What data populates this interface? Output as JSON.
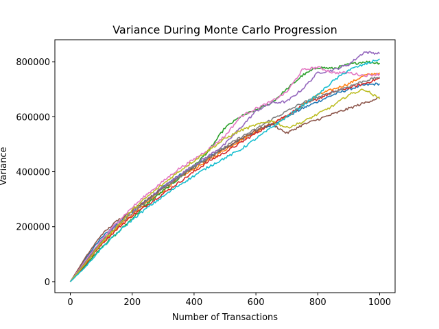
{
  "chart_data": {
    "type": "line",
    "title": "Variance During Monte Carlo Progression",
    "xlabel": "Number of Transactions",
    "ylabel": "Variance",
    "xlim": [
      -50,
      1050
    ],
    "ylim": [
      -40000,
      880000
    ],
    "x_ticks": [
      0,
      200,
      400,
      600,
      800,
      1000
    ],
    "x_tick_labels": [
      "0",
      "200",
      "400",
      "600",
      "800",
      "1000"
    ],
    "y_ticks": [
      0,
      200000,
      400000,
      600000,
      800000
    ],
    "y_tick_labels": [
      "0",
      "200000",
      "400000",
      "600000",
      "800000"
    ],
    "grid": false,
    "legend": "none",
    "x": [
      0,
      50,
      100,
      150,
      200,
      250,
      300,
      350,
      400,
      450,
      500,
      550,
      600,
      650,
      700,
      750,
      800,
      850,
      900,
      950,
      1000
    ],
    "series": [
      {
        "color": "#1f77b4",
        "values": [
          0,
          85000,
          160000,
          210000,
          255000,
          300000,
          345000,
          385000,
          420000,
          455000,
          485000,
          515000,
          545000,
          570000,
          600000,
          630000,
          655000,
          680000,
          700000,
          715000,
          720000
        ]
      },
      {
        "color": "#ff7f0e",
        "values": [
          0,
          70000,
          140000,
          195000,
          245000,
          290000,
          330000,
          375000,
          410000,
          445000,
          480000,
          515000,
          545000,
          575000,
          600000,
          640000,
          680000,
          700000,
          720000,
          750000,
          760000
        ]
      },
      {
        "color": "#2ca02c",
        "values": [
          0,
          60000,
          125000,
          175000,
          230000,
          285000,
          330000,
          375000,
          420000,
          480000,
          560000,
          600000,
          625000,
          650000,
          700000,
          750000,
          780000,
          775000,
          790000,
          800000,
          795000
        ]
      },
      {
        "color": "#d62728",
        "values": [
          0,
          65000,
          135000,
          190000,
          240000,
          280000,
          320000,
          360000,
          400000,
          440000,
          470000,
          505000,
          540000,
          575000,
          605000,
          640000,
          665000,
          690000,
          705000,
          720000,
          740000
        ]
      },
      {
        "color": "#9467bd",
        "values": [
          0,
          75000,
          150000,
          205000,
          255000,
          300000,
          345000,
          385000,
          425000,
          460000,
          500000,
          560000,
          620000,
          650000,
          655000,
          700000,
          760000,
          770000,
          790000,
          835000,
          830000
        ]
      },
      {
        "color": "#8c564b",
        "values": [
          0,
          90000,
          170000,
          220000,
          260000,
          300000,
          340000,
          380000,
          415000,
          450000,
          485000,
          520000,
          550000,
          575000,
          540000,
          570000,
          590000,
          610000,
          630000,
          650000,
          670000
        ]
      },
      {
        "color": "#e377c2",
        "values": [
          0,
          78000,
          150000,
          215000,
          270000,
          320000,
          365000,
          410000,
          445000,
          485000,
          530000,
          600000,
          630000,
          655000,
          690000,
          770000,
          780000,
          760000,
          760000,
          750000,
          755000
        ]
      },
      {
        "color": "#7f7f7f",
        "values": [
          0,
          72000,
          145000,
          200000,
          250000,
          295000,
          340000,
          380000,
          420000,
          455000,
          490000,
          525000,
          555000,
          590000,
          620000,
          650000,
          670000,
          690000,
          710000,
          730000,
          745000
        ]
      },
      {
        "color": "#bcbd22",
        "values": [
          0,
          68000,
          140000,
          200000,
          260000,
          310000,
          355000,
          400000,
          440000,
          480000,
          520000,
          550000,
          570000,
          585000,
          560000,
          580000,
          610000,
          640000,
          680000,
          700000,
          665000
        ]
      },
      {
        "color": "#17becf",
        "values": [
          0,
          55000,
          120000,
          175000,
          225000,
          270000,
          310000,
          350000,
          385000,
          420000,
          450000,
          480000,
          520000,
          560000,
          600000,
          640000,
          680000,
          730000,
          770000,
          790000,
          810000
        ]
      }
    ]
  }
}
